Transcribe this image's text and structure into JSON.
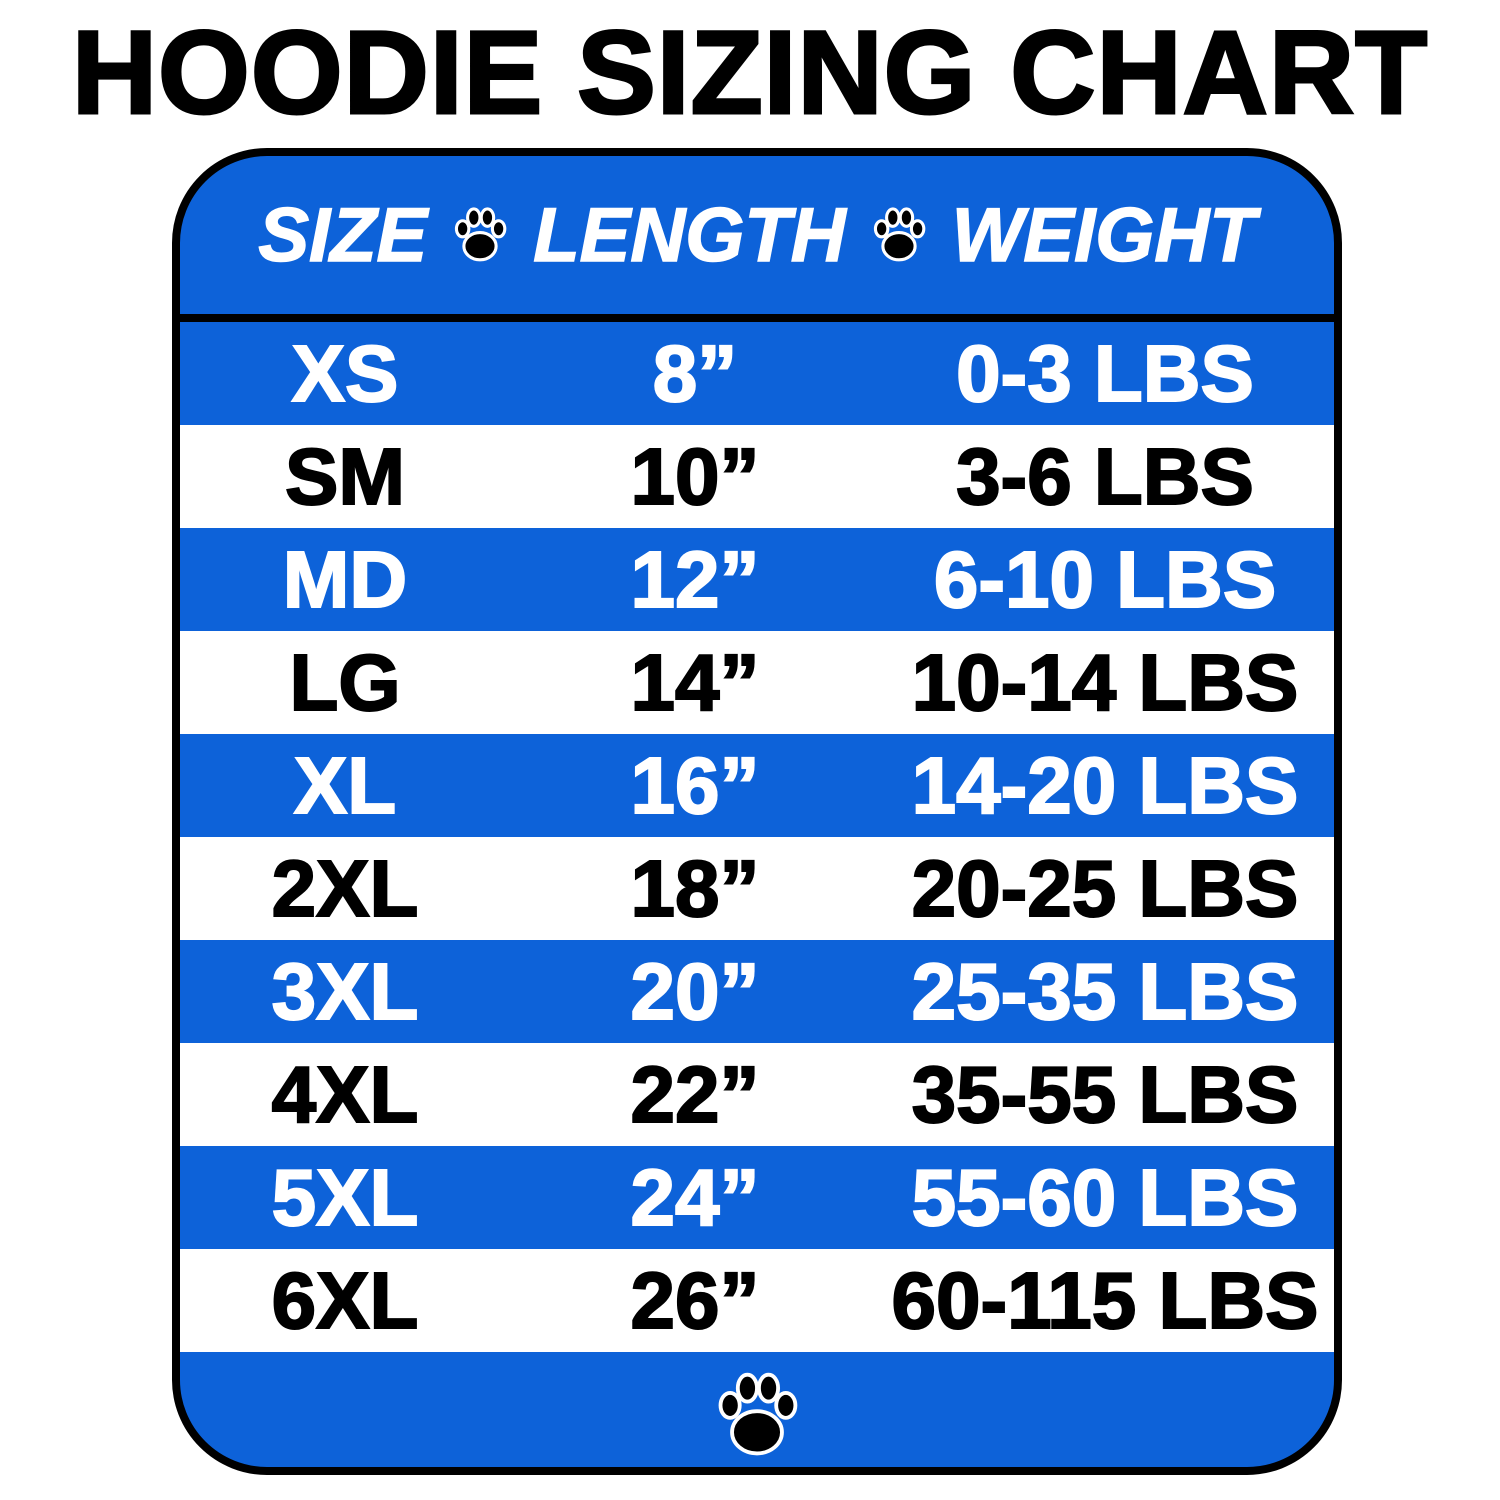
{
  "title": "HOODIE SIZING CHART",
  "colors": {
    "blue": "#0D62D9",
    "white": "#FFFFFF",
    "black": "#000000"
  },
  "header": {
    "size": "SIZE",
    "length": "LENGTH",
    "weight": "WEIGHT",
    "separator_icon": "paw-icon"
  },
  "rows": [
    {
      "size": "XS",
      "length": "8”",
      "weight": "0-3 LBS"
    },
    {
      "size": "SM",
      "length": "10”",
      "weight": "3-6 LBS"
    },
    {
      "size": "MD",
      "length": "12”",
      "weight": "6-10 LBS"
    },
    {
      "size": "LG",
      "length": "14”",
      "weight": "10-14 LBS"
    },
    {
      "size": "XL",
      "length": "16”",
      "weight": "14-20 LBS"
    },
    {
      "size": "2XL",
      "length": "18”",
      "weight": "20-25 LBS"
    },
    {
      "size": "3XL",
      "length": "20”",
      "weight": "25-35 LBS"
    },
    {
      "size": "4XL",
      "length": "22”",
      "weight": "35-55 LBS"
    },
    {
      "size": "5XL",
      "length": "24”",
      "weight": "55-60 LBS"
    },
    {
      "size": "6XL",
      "length": "26”",
      "weight": "60-115 LBS"
    }
  ],
  "footer_icon": "paw-icon"
}
